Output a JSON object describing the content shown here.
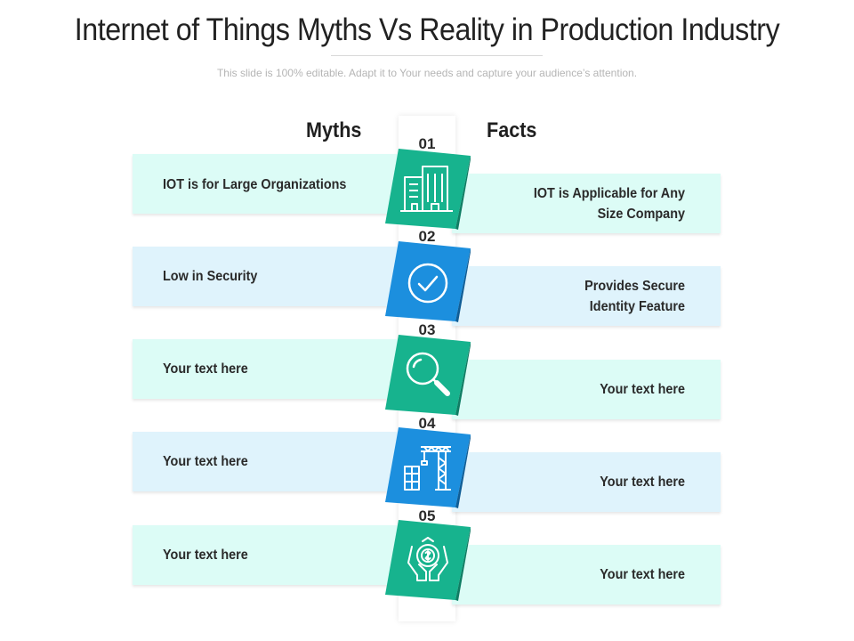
{
  "title": "Internet of Things Myths Vs Reality in Production Industry",
  "subtitle": "This slide is 100% editable. Adapt it to Your needs and capture your audience’s attention.",
  "columns": {
    "myths": "Myths",
    "facts": "Facts"
  },
  "colors": {
    "teal": "#17b38e",
    "teal_dark": "#0f7d63",
    "blue": "#1c8fde",
    "blue_dark": "#0f5d96",
    "teal_bar": "#dcfcf6",
    "blue_bar": "#dff3fc"
  },
  "rows": [
    {
      "number": "01",
      "myth": "IOT is for Large Organizations",
      "fact_line1": "IOT is Applicable for Any",
      "fact_line2": "Size Company",
      "icon": "buildings-icon",
      "color": "teal"
    },
    {
      "number": "02",
      "myth": "Low in Security",
      "fact_line1": "Provides Secure",
      "fact_line2": "Identity Feature",
      "icon": "check-circle-icon",
      "color": "blue"
    },
    {
      "number": "03",
      "myth": "Your text here",
      "fact_line1": "Your text here",
      "fact_line2": "",
      "icon": "magnifier-icon",
      "color": "teal"
    },
    {
      "number": "04",
      "myth": "Your text here",
      "fact_line1": "Your text here",
      "fact_line2": "",
      "icon": "construction-crane-icon",
      "color": "blue"
    },
    {
      "number": "05",
      "myth": "Your text here",
      "fact_line1": "Your text here",
      "fact_line2": "",
      "icon": "hands-coin-icon",
      "color": "teal"
    }
  ]
}
